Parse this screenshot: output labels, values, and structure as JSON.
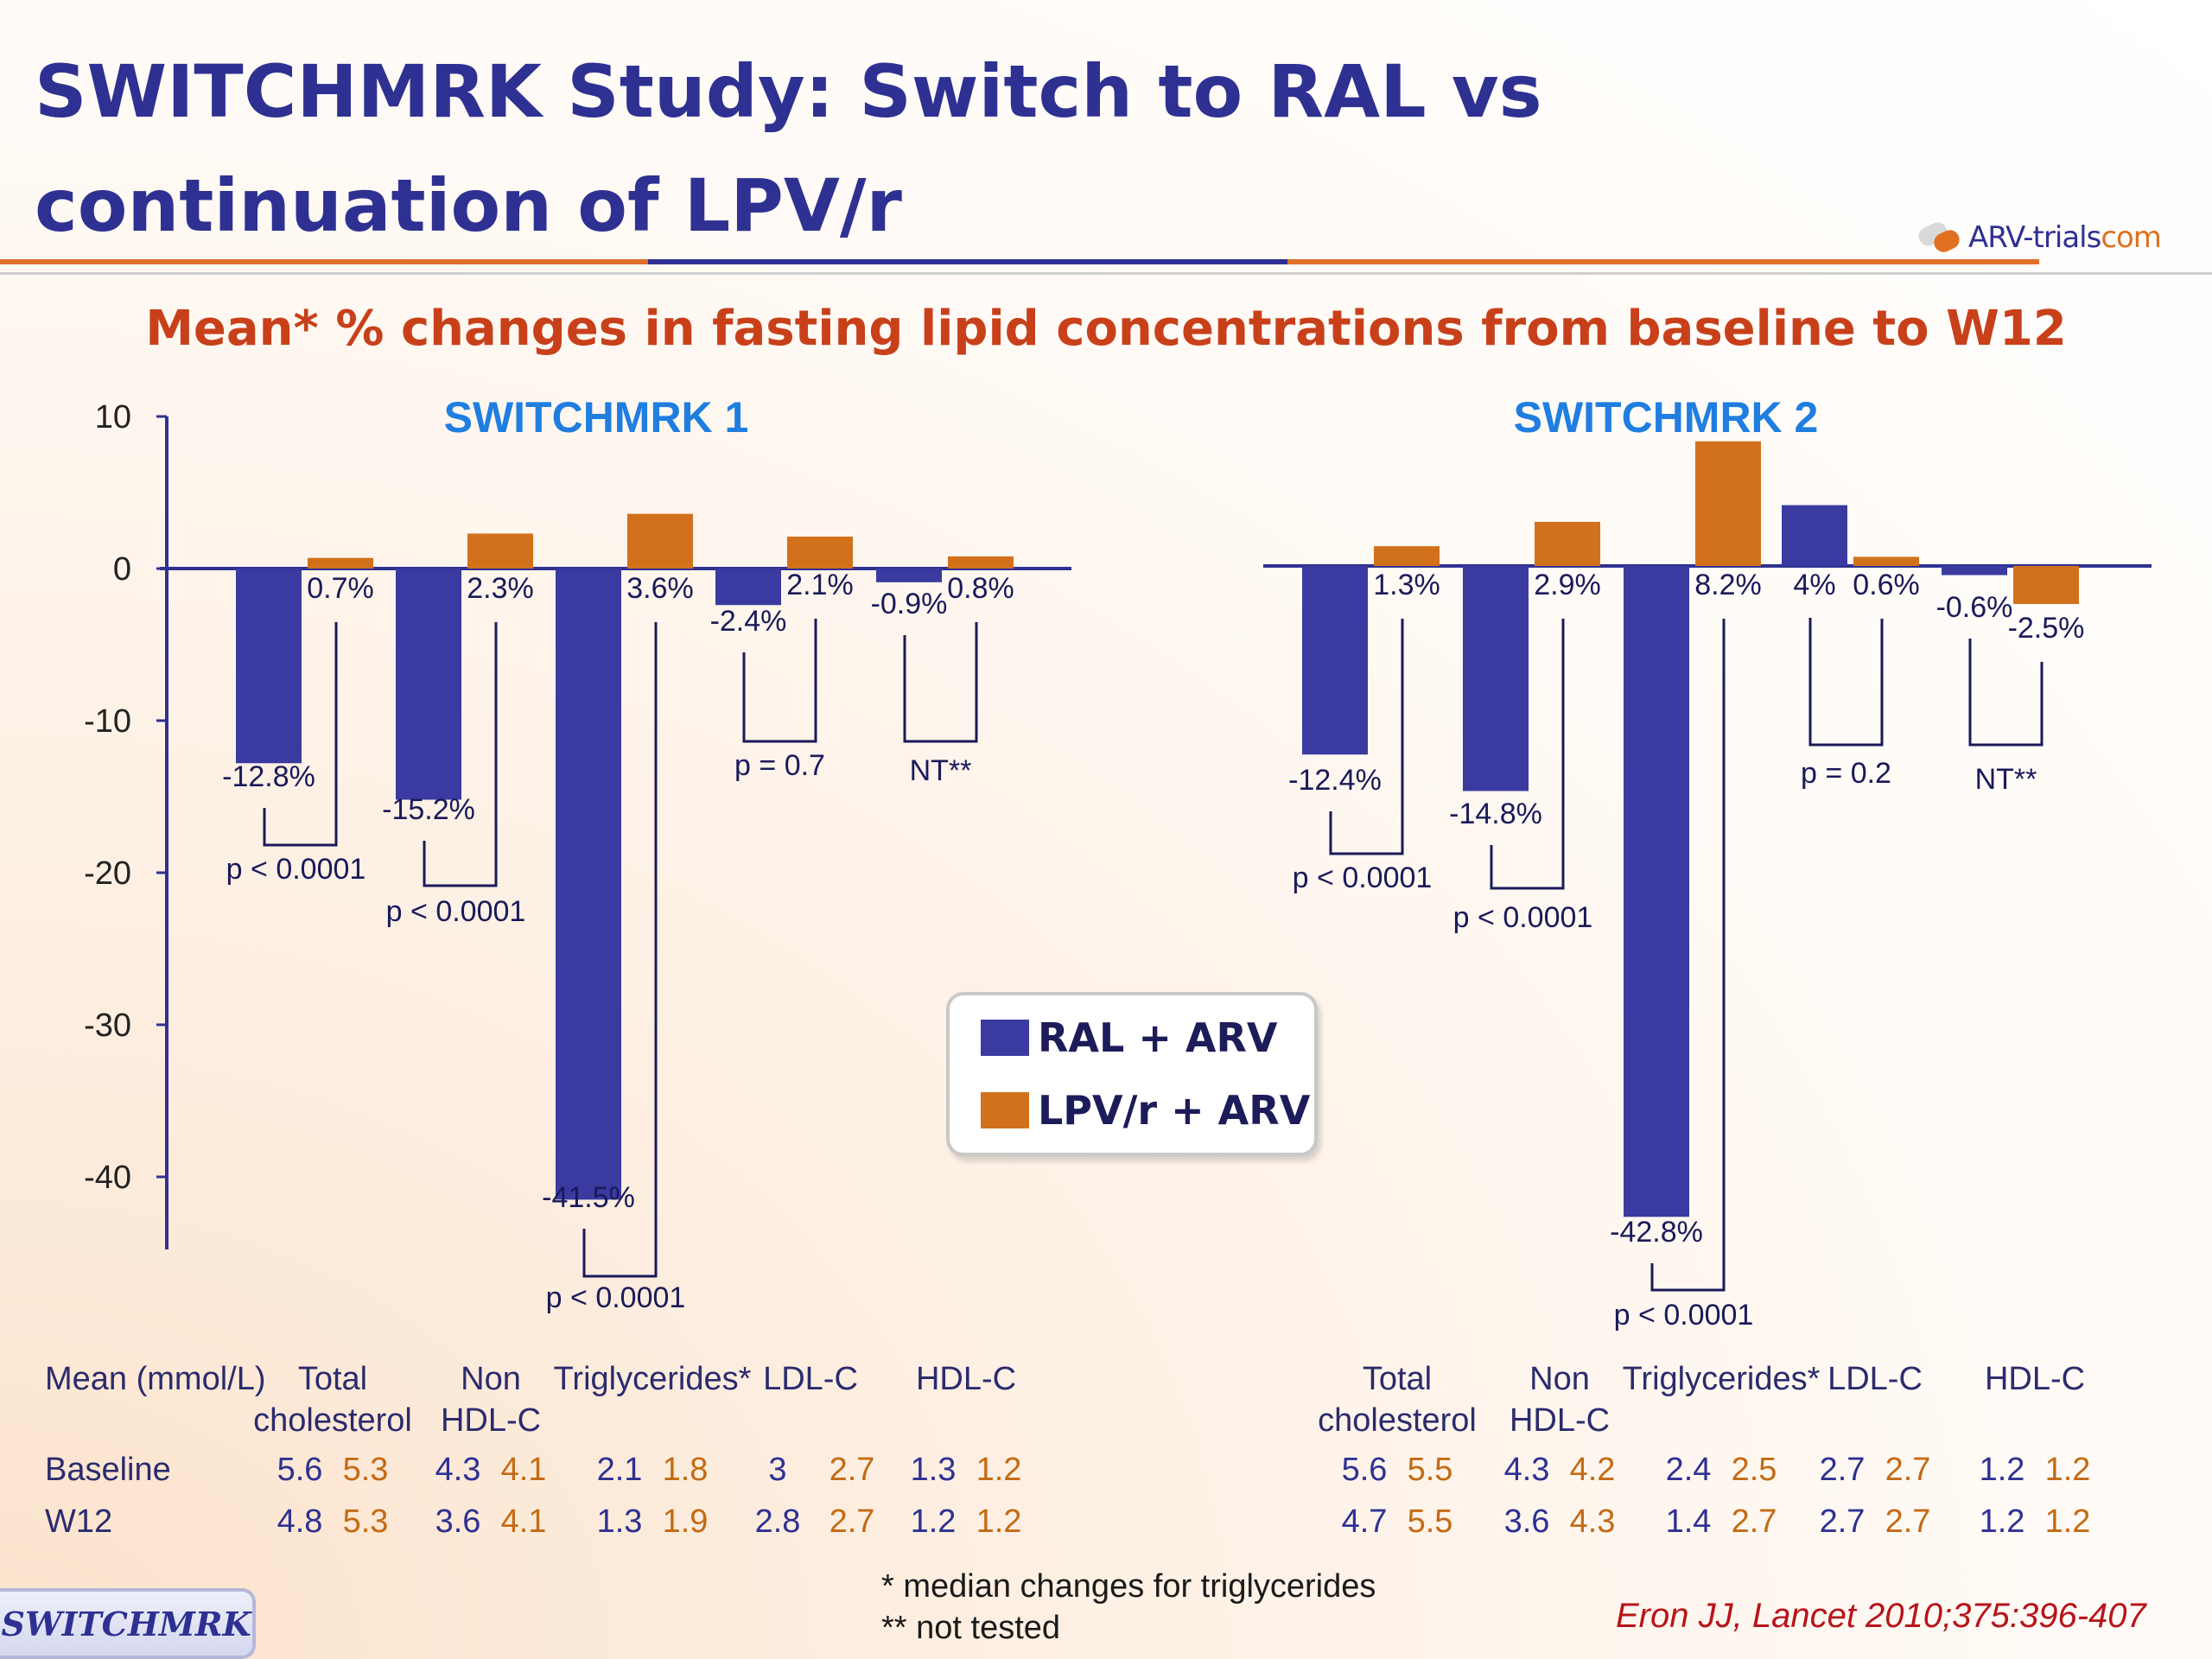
{
  "slide": {
    "title": "SWITCHMRK Study: Switch to RAL vs continuation of LPV/r",
    "logo_text": "ARV-trials",
    "logo_suffix": "com",
    "subtitle": "Mean* % changes in fasting lipid concentrations from baseline to W12",
    "footnotes": [
      "* median changes for triglycerides",
      "** not tested"
    ],
    "reference": "Eron JJ, Lancet 2010;375:396-407",
    "badge": "SWITCHMRK"
  },
  "colors": {
    "ral": "#3a3aa0",
    "lpv": "#d2711c",
    "title": "#2e3192",
    "subtitle": "#c8401a"
  },
  "legend": [
    {
      "label": "RAL + ARV",
      "color": "#3a3aa0"
    },
    {
      "label": "LPV/r + ARV",
      "color": "#d2711c"
    }
  ],
  "chart_data": [
    {
      "type": "bar",
      "title": "SWITCHMRK 1",
      "categories": [
        "Total cholesterol",
        "Non HDL-C",
        "Triglycerides*",
        "LDL-C",
        "HDL-C"
      ],
      "series": [
        {
          "name": "RAL + ARV",
          "values": [
            -12.8,
            -15.2,
            -41.5,
            -2.4,
            -0.9
          ],
          "labels": [
            "-12.8%",
            "-15.2%",
            "-41.5%",
            "-2.4%",
            "-0.9%"
          ]
        },
        {
          "name": "LPV/r + ARV",
          "values": [
            0.7,
            2.3,
            3.6,
            2.1,
            0.8
          ],
          "labels": [
            "0.7%",
            "2.3%",
            "3.6%",
            "2.1%",
            "0.8%"
          ]
        }
      ],
      "p_values": [
        "p < 0.0001",
        "p < 0.0001",
        "p < 0.0001",
        "p = 0.7",
        "NT**"
      ],
      "yticks": [
        10,
        0,
        -10,
        -20,
        -30,
        -40
      ],
      "ylim": [
        -45,
        10
      ],
      "table": {
        "header": [
          "Mean (mmol/L)",
          "Total cholesterol",
          "Non HDL-C",
          "Triglycerides*",
          "LDL-C",
          "HDL-C"
        ],
        "rows": [
          {
            "label": "Baseline",
            "ral": [
              "5.6",
              "4.3",
              "2.1",
              "3",
              "1.3"
            ],
            "lpv": [
              "5.3",
              "4.1",
              "1.8",
              "2.7",
              "1.2"
            ]
          },
          {
            "label": "W12",
            "ral": [
              "4.8",
              "3.6",
              "1.3",
              "2.8",
              "1.2"
            ],
            "lpv": [
              "5.3",
              "4.1",
              "1.9",
              "2.7",
              "1.2"
            ]
          }
        ]
      }
    },
    {
      "type": "bar",
      "title": "SWITCHMRK 2",
      "categories": [
        "Total cholesterol",
        "Non HDL-C",
        "Triglycerides*",
        "LDL-C",
        "HDL-C"
      ],
      "series": [
        {
          "name": "RAL + ARV",
          "values": [
            -12.4,
            -14.8,
            -42.8,
            4,
            -0.6
          ],
          "labels": [
            "-12.4%",
            "-14.8%",
            "-42.8%",
            "4%",
            "-0.6%"
          ]
        },
        {
          "name": "LPV/r + ARV",
          "values": [
            1.3,
            2.9,
            8.2,
            0.6,
            -2.5
          ],
          "labels": [
            "1.3%",
            "2.9%",
            "8.2%",
            "0.6%",
            "-2.5%"
          ]
        }
      ],
      "p_values": [
        "p < 0.0001",
        "p < 0.0001",
        "p < 0.0001",
        "p = 0.2",
        "NT**"
      ],
      "table": {
        "header": [
          "Total cholesterol",
          "Non HDL-C",
          "Triglycerides*",
          "LDL-C",
          "HDL-C"
        ],
        "rows": [
          {
            "label": "Baseline",
            "ral": [
              "5.6",
              "4.3",
              "2.4",
              "2.7",
              "1.2"
            ],
            "lpv": [
              "5.5",
              "4.2",
              "2.5",
              "2.7",
              "1.2"
            ]
          },
          {
            "label": "W12",
            "ral": [
              "4.7",
              "3.6",
              "1.4",
              "2.7",
              "1.2"
            ],
            "lpv": [
              "5.5",
              "4.3",
              "2.7",
              "2.7",
              "1.2"
            ]
          }
        ]
      }
    }
  ]
}
